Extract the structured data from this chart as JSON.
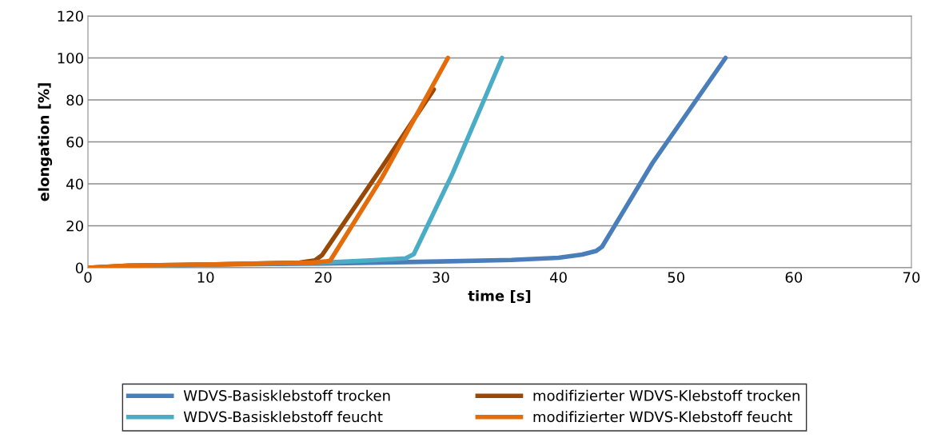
{
  "chart_data": {
    "type": "line",
    "xlabel": "time [s]",
    "ylabel": "elongation [%]",
    "xlim": [
      0,
      70
    ],
    "xticks": [
      0,
      10,
      20,
      30,
      40,
      50,
      60,
      70
    ],
    "ylim": [
      0,
      120
    ],
    "yticks": [
      0,
      20,
      40,
      60,
      80,
      100,
      120
    ],
    "grid": "y",
    "legend": "bottom",
    "marker": "none",
    "line_style": "solid",
    "series": [
      {
        "name": "WDVS-Basisklebstoff trocken",
        "color": "#4a7ebb",
        "x": [
          0,
          10,
          20,
          30,
          36,
          40,
          42,
          43.2,
          43.7,
          48,
          54.2
        ],
        "values": [
          0,
          1.5,
          2,
          3,
          3.7,
          4.8,
          6.3,
          8,
          10,
          50,
          100
        ]
      },
      {
        "name": "modifizierter WDVS-Klebstoff trocken",
        "color": "#984807",
        "x": [
          0,
          3.5,
          10,
          18,
          19.3,
          19.9,
          25,
          29.4
        ],
        "values": [
          0,
          1,
          1.5,
          2.5,
          3.5,
          6,
          48,
          85
        ]
      },
      {
        "name": "WDVS-Basisklebstoff feucht",
        "color": "#4bacc6",
        "x": [
          0,
          10,
          20,
          24,
          27,
          27.7,
          31,
          35.2
        ],
        "values": [
          0,
          1.5,
          2.5,
          3.5,
          4.5,
          6.5,
          45,
          100
        ]
      },
      {
        "name": "modifizierter WDVS-Klebstoff feucht",
        "color": "#e46c0a",
        "x": [
          0,
          3.5,
          10,
          19,
          20.2,
          20.6,
          25,
          30.6
        ],
        "values": [
          0,
          1,
          1.5,
          2.5,
          3,
          3.4,
          43,
          100
        ]
      }
    ]
  }
}
